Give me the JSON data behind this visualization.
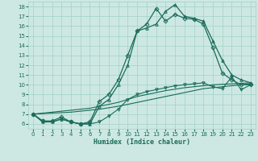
{
  "xlabel": "Humidex (Indice chaleur)",
  "background_color": "#cde8e3",
  "grid_color": "#a8d4cc",
  "line_color": "#1a6b5a",
  "xlim": [
    -0.5,
    23.5
  ],
  "ylim": [
    5.5,
    18.5
  ],
  "xticks": [
    0,
    1,
    2,
    3,
    4,
    5,
    6,
    7,
    8,
    9,
    10,
    11,
    12,
    13,
    14,
    15,
    16,
    17,
    18,
    19,
    20,
    21,
    22,
    23
  ],
  "yticks": [
    6,
    7,
    8,
    9,
    10,
    11,
    12,
    13,
    14,
    15,
    16,
    17,
    18
  ],
  "series": [
    {
      "x": [
        0,
        1,
        2,
        3,
        4,
        5,
        6,
        7,
        8,
        9,
        10,
        11,
        12,
        13,
        14,
        15,
        16,
        17,
        18,
        19,
        20,
        21,
        22,
        23
      ],
      "y": [
        7.0,
        6.3,
        6.3,
        6.7,
        6.2,
        6.0,
        6.2,
        8.3,
        9.0,
        10.5,
        13.0,
        15.5,
        16.2,
        17.8,
        16.5,
        17.2,
        16.8,
        16.7,
        16.2,
        13.8,
        11.2,
        10.5,
        10.0,
        10.0
      ],
      "marker": "D",
      "markersize": 2.5,
      "linewidth": 0.9
    },
    {
      "x": [
        0,
        1,
        2,
        3,
        4,
        5,
        6,
        7,
        8,
        9,
        10,
        11,
        12,
        13,
        14,
        15,
        16,
        17,
        18,
        19,
        20,
        21,
        22,
        23
      ],
      "y": [
        7.0,
        6.2,
        6.2,
        6.5,
        6.2,
        6.0,
        6.0,
        7.8,
        8.5,
        10.0,
        12.0,
        15.5,
        15.8,
        16.2,
        17.5,
        18.2,
        17.0,
        16.8,
        16.5,
        14.5,
        12.5,
        11.0,
        10.5,
        10.2
      ],
      "marker": "^",
      "markersize": 2.5,
      "linewidth": 0.9
    },
    {
      "x": [
        0,
        1,
        2,
        3,
        4,
        5,
        6,
        7,
        8,
        9,
        10,
        11,
        12,
        13,
        14,
        15,
        16,
        17,
        18,
        19,
        20,
        21,
        22,
        23
      ],
      "y": [
        7.0,
        7.05,
        7.1,
        7.15,
        7.2,
        7.3,
        7.4,
        7.5,
        7.65,
        7.8,
        8.0,
        8.2,
        8.4,
        8.6,
        8.8,
        9.0,
        9.2,
        9.4,
        9.6,
        9.7,
        9.8,
        9.9,
        10.0,
        10.1
      ],
      "marker": null,
      "markersize": 0,
      "linewidth": 0.8
    },
    {
      "x": [
        0,
        1,
        2,
        3,
        4,
        5,
        6,
        7,
        8,
        9,
        10,
        11,
        12,
        13,
        14,
        15,
        16,
        17,
        18,
        19,
        20,
        21,
        22,
        23
      ],
      "y": [
        7.0,
        7.1,
        7.2,
        7.3,
        7.4,
        7.5,
        7.6,
        7.8,
        8.0,
        8.2,
        8.5,
        8.8,
        9.0,
        9.2,
        9.4,
        9.55,
        9.7,
        9.8,
        9.9,
        10.0,
        10.05,
        10.1,
        10.15,
        10.2
      ],
      "marker": null,
      "markersize": 0,
      "linewidth": 0.8
    },
    {
      "x": [
        0,
        1,
        2,
        3,
        4,
        5,
        6,
        7,
        8,
        9,
        10,
        11,
        12,
        13,
        14,
        15,
        16,
        17,
        18,
        19,
        20,
        21,
        22,
        23
      ],
      "y": [
        7.0,
        6.3,
        6.2,
        6.5,
        6.2,
        6.0,
        6.0,
        6.2,
        6.8,
        7.5,
        8.5,
        9.0,
        9.3,
        9.5,
        9.7,
        9.9,
        10.0,
        10.1,
        10.2,
        9.8,
        9.6,
        10.8,
        9.5,
        10.0
      ],
      "marker": "v",
      "markersize": 2.5,
      "linewidth": 0.8
    }
  ]
}
